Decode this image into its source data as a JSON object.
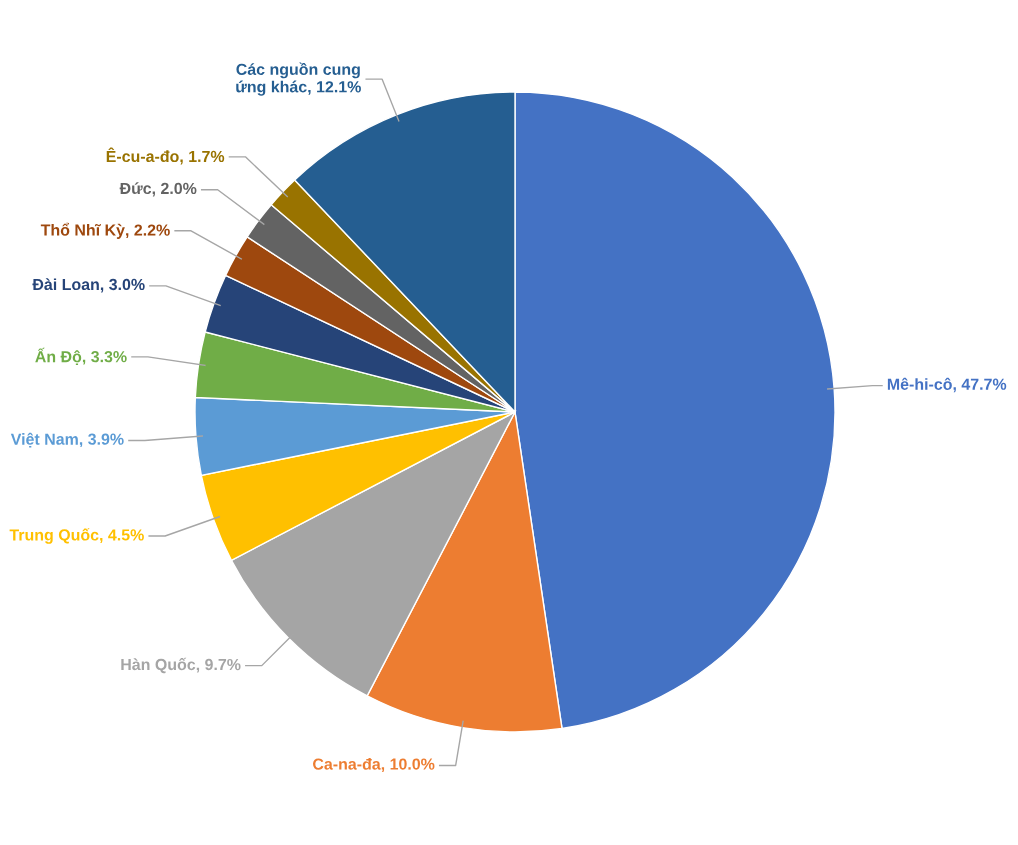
{
  "chart_data": {
    "type": "pie",
    "categories": [
      "Mê-hi-cô",
      "Ca-na-đa",
      "Hàn Quốc",
      "Trung Quốc",
      "Việt Nam",
      "Ấn Độ",
      "Đài Loan",
      "Thổ Nhĩ Kỳ",
      "Đức",
      "Ê-cu-a-đo",
      "Các nguồn cung\nứng khác"
    ],
    "value_labels": [
      "47.7%",
      "10.0%",
      "9.7%",
      "4.5%",
      "3.9%",
      "3.3%",
      "3.0%",
      "2.2%",
      "2.0%",
      "1.7%",
      "12.1%"
    ],
    "values": [
      47.7,
      10.0,
      9.7,
      4.5,
      3.9,
      3.3,
      3.0,
      2.2,
      2.0,
      1.7,
      12.1
    ],
    "colors": [
      "#4472c4",
      "#ed7d31",
      "#a5a5a5",
      "#ffc000",
      "#5b9bd5",
      "#70ad47",
      "#264478",
      "#9e480e",
      "#636363",
      "#997300",
      "#255e91"
    ],
    "legend": false
  }
}
